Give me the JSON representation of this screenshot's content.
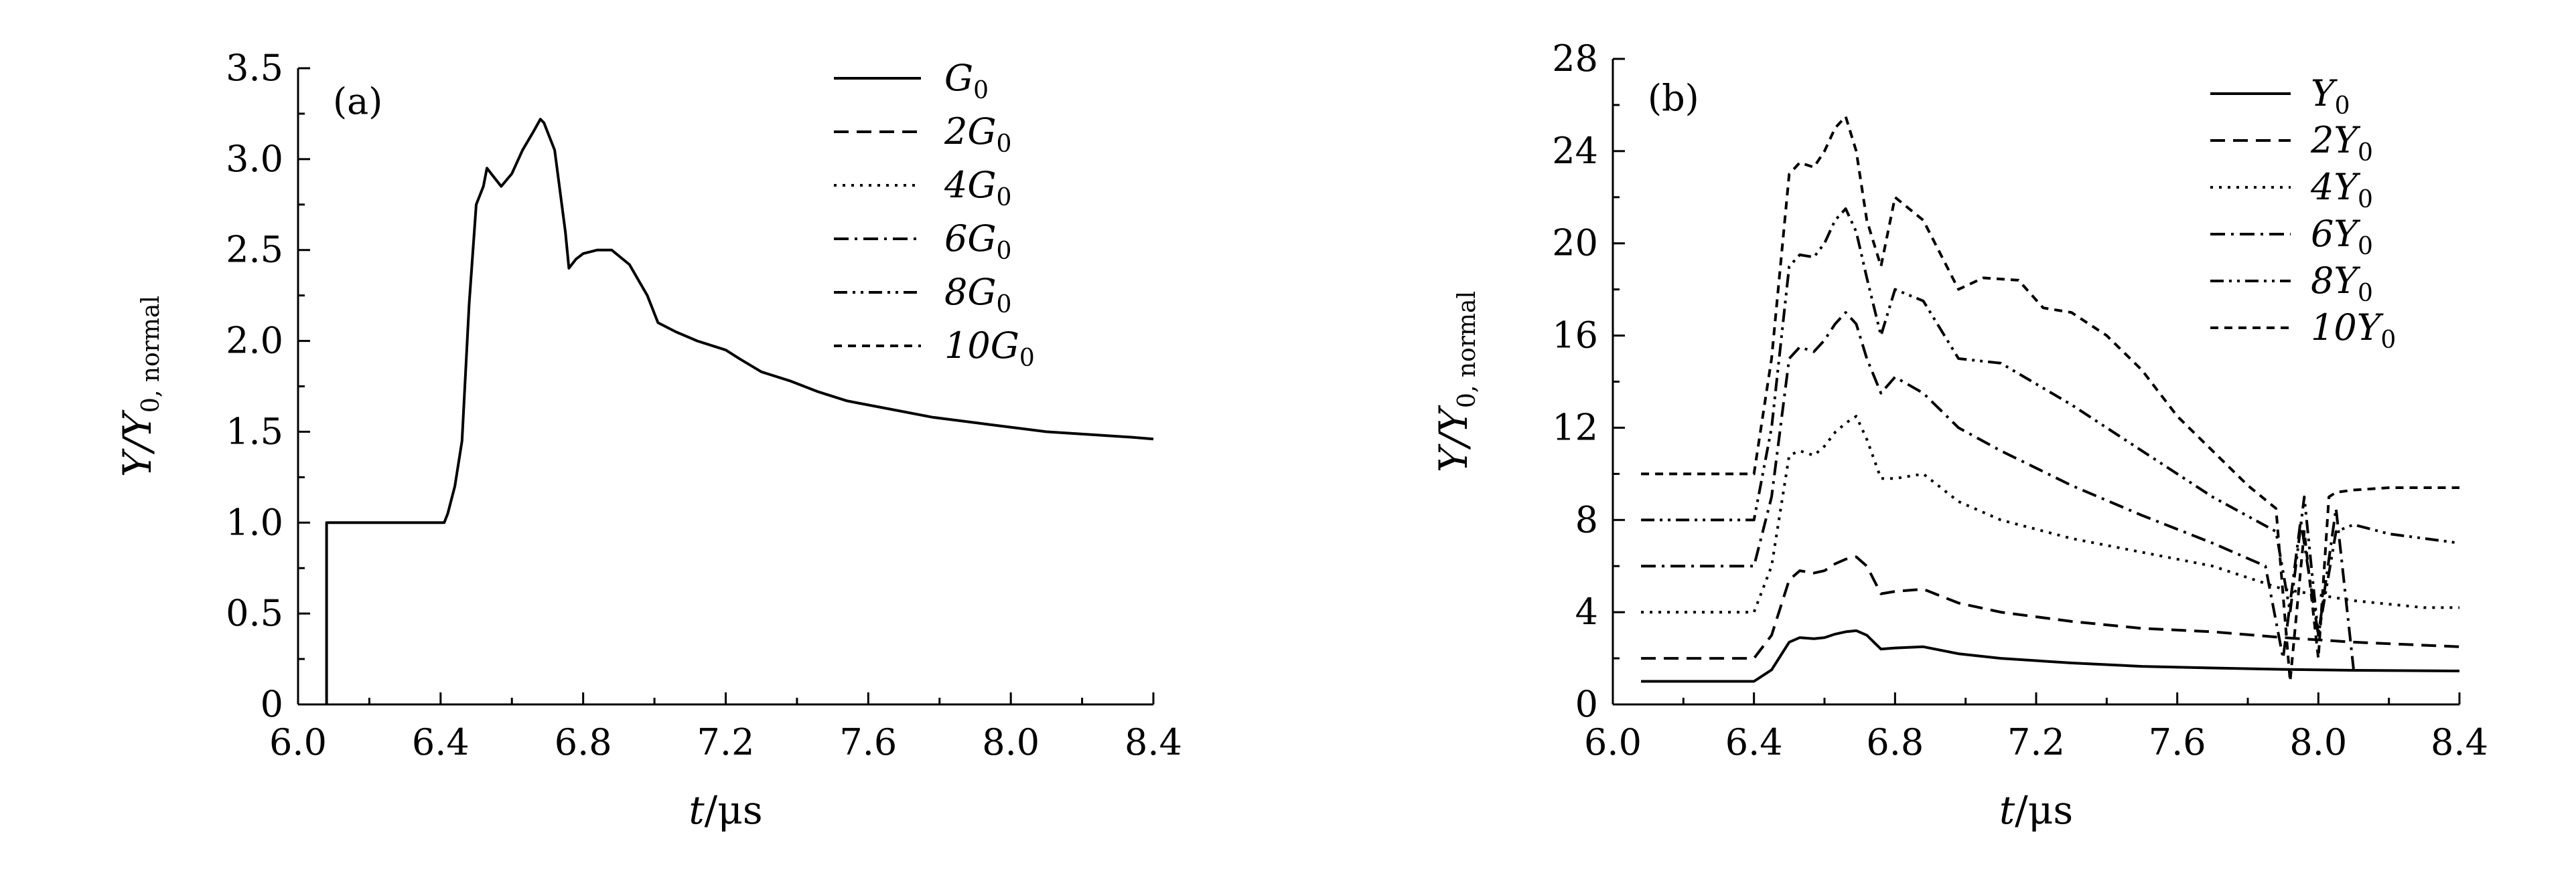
{
  "chart_data": [
    {
      "type": "line",
      "panel_label": "(a)",
      "xlabel_var": "t",
      "xlabel_unit": "/μs",
      "ylabel_var": "Y/Y",
      "ylabel_sub": "0, normal",
      "xlim": [
        6.0,
        8.4
      ],
      "ylim": [
        0,
        3.5
      ],
      "x_ticks": [
        6.0,
        6.4,
        6.8,
        7.2,
        7.6,
        8.0,
        8.4
      ],
      "x_tick_labels": [
        "6.0",
        "6.4",
        "6.8",
        "7.2",
        "7.6",
        "8.0",
        "8.4"
      ],
      "y_ticks": [
        0,
        0.5,
        1.0,
        1.5,
        2.0,
        2.5,
        3.0,
        3.5
      ],
      "y_tick_labels": [
        "0",
        "0.5",
        "1.0",
        "1.5",
        "2.0",
        "2.5",
        "3.0",
        "3.5"
      ],
      "legend_position": "top-right",
      "series": [
        {
          "name": "G",
          "name_sub": "0",
          "dash": "solid",
          "x": [
            6.08,
            6.08,
            6.41,
            6.42,
            6.44,
            6.46,
            6.48,
            6.5,
            6.52,
            6.53,
            6.55,
            6.57,
            6.6,
            6.63,
            6.66,
            6.68,
            6.69,
            6.72,
            6.75,
            6.76,
            6.78,
            6.8,
            6.84,
            6.88,
            6.93,
            6.98,
            7.01,
            7.06,
            7.12,
            7.2,
            7.24,
            7.3,
            7.38,
            7.46,
            7.54,
            7.62,
            7.7,
            7.78,
            7.86,
            7.94,
            8.02,
            8.1,
            8.18,
            8.26,
            8.34,
            8.4
          ],
          "y": [
            0,
            1.0,
            1.0,
            1.05,
            1.2,
            1.45,
            2.2,
            2.75,
            2.85,
            2.95,
            2.9,
            2.85,
            2.92,
            3.05,
            3.15,
            3.22,
            3.2,
            3.05,
            2.6,
            2.4,
            2.45,
            2.48,
            2.5,
            2.5,
            2.42,
            2.25,
            2.1,
            2.05,
            2.0,
            1.95,
            1.9,
            1.83,
            1.78,
            1.72,
            1.67,
            1.64,
            1.61,
            1.58,
            1.56,
            1.54,
            1.52,
            1.5,
            1.49,
            1.48,
            1.47,
            1.46
          ]
        },
        {
          "name": "2G",
          "name_sub": "0",
          "dash": "dashed",
          "x": [],
          "y": []
        },
        {
          "name": "4G",
          "name_sub": "0",
          "dash": "dotted",
          "x": [],
          "y": []
        },
        {
          "name": "6G",
          "name_sub": "0",
          "dash": "dash-dot",
          "x": [],
          "y": []
        },
        {
          "name": "8G",
          "name_sub": "0",
          "dash": "dash-dot-dot",
          "x": [],
          "y": []
        },
        {
          "name": "10G",
          "name_sub": "0",
          "dash": "short-dashed",
          "x": [],
          "y": []
        }
      ]
    },
    {
      "type": "line",
      "panel_label": "(b)",
      "xlabel_var": "t",
      "xlabel_unit": "/μs",
      "ylabel_var": "Y/Y",
      "ylabel_sub": "0, normal",
      "xlim": [
        6.0,
        8.4
      ],
      "ylim": [
        0,
        28
      ],
      "x_ticks": [
        6.0,
        6.4,
        6.8,
        7.2,
        7.6,
        8.0,
        8.4
      ],
      "x_tick_labels": [
        "6.0",
        "6.4",
        "6.8",
        "7.2",
        "7.6",
        "8.0",
        "8.4"
      ],
      "y_ticks": [
        0,
        4,
        8,
        12,
        16,
        20,
        24,
        28
      ],
      "y_tick_labels": [
        "0",
        "4",
        "8",
        "12",
        "16",
        "20",
        "24",
        "28"
      ],
      "legend_position": "top-right",
      "series": [
        {
          "name": "Y",
          "name_sub": "0",
          "dash": "solid",
          "x": [
            6.08,
            6.4,
            6.45,
            6.5,
            6.53,
            6.57,
            6.6,
            6.63,
            6.66,
            6.69,
            6.72,
            6.76,
            6.8,
            6.88,
            6.98,
            7.1,
            7.3,
            7.5,
            7.7,
            7.9,
            8.1,
            8.4
          ],
          "y": [
            1.0,
            1.0,
            1.5,
            2.7,
            2.9,
            2.85,
            2.9,
            3.05,
            3.15,
            3.2,
            3.0,
            2.4,
            2.45,
            2.5,
            2.2,
            2.0,
            1.8,
            1.65,
            1.58,
            1.52,
            1.48,
            1.45
          ]
        },
        {
          "name": "2Y",
          "name_sub": "0",
          "dash": "dashed",
          "x": [
            6.08,
            6.4,
            6.45,
            6.5,
            6.53,
            6.57,
            6.6,
            6.63,
            6.66,
            6.69,
            6.72,
            6.76,
            6.8,
            6.88,
            6.98,
            7.1,
            7.3,
            7.5,
            7.7,
            7.9,
            8.1,
            8.4
          ],
          "y": [
            2.0,
            2.0,
            3.0,
            5.4,
            5.8,
            5.7,
            5.8,
            6.1,
            6.3,
            6.4,
            6.0,
            4.8,
            4.9,
            5.0,
            4.4,
            4.0,
            3.6,
            3.3,
            3.15,
            2.9,
            2.7,
            2.5
          ]
        },
        {
          "name": "4Y",
          "name_sub": "0",
          "dash": "dotted",
          "x": [
            6.08,
            6.4,
            6.45,
            6.5,
            6.53,
            6.57,
            6.6,
            6.63,
            6.66,
            6.69,
            6.72,
            6.76,
            6.8,
            6.88,
            6.98,
            7.1,
            7.3,
            7.5,
            7.7,
            7.9,
            8.1,
            8.3,
            8.4
          ],
          "y": [
            4.0,
            4.0,
            6.0,
            10.8,
            11.0,
            10.8,
            11.2,
            11.8,
            12.2,
            12.5,
            11.5,
            9.8,
            9.8,
            10.0,
            8.8,
            8.0,
            7.2,
            6.6,
            6.0,
            5.0,
            4.5,
            4.2,
            4.2
          ]
        },
        {
          "name": "6Y",
          "name_sub": "0",
          "dash": "dash-dot",
          "x": [
            6.08,
            6.4,
            6.45,
            6.5,
            6.53,
            6.57,
            6.6,
            6.63,
            6.66,
            6.69,
            6.72,
            6.76,
            6.8,
            6.88,
            6.98,
            7.1,
            7.3,
            7.5,
            7.7,
            7.85,
            7.9,
            7.95,
            8.0,
            8.05,
            8.1
          ],
          "y": [
            6.0,
            6.0,
            9.0,
            15.0,
            15.5,
            15.3,
            15.8,
            16.5,
            17.0,
            16.5,
            15.0,
            13.5,
            14.2,
            13.5,
            12.0,
            11.0,
            9.5,
            8.2,
            7.0,
            6.0,
            2.0,
            8.0,
            3.0,
            8.5,
            1.5
          ]
        },
        {
          "name": "8Y",
          "name_sub": "0",
          "dash": "dash-dot-dot",
          "x": [
            6.08,
            6.4,
            6.45,
            6.5,
            6.53,
            6.57,
            6.6,
            6.63,
            6.66,
            6.69,
            6.72,
            6.76,
            6.8,
            6.88,
            6.98,
            7.1,
            7.3,
            7.5,
            7.7,
            7.88,
            7.92,
            7.96,
            8.0,
            8.05,
            8.1,
            8.2,
            8.3,
            8.4
          ],
          "y": [
            8.0,
            8.0,
            12.0,
            19.0,
            19.5,
            19.4,
            20.0,
            21.0,
            21.5,
            20.5,
            18.5,
            16.0,
            18.0,
            17.5,
            15.0,
            14.8,
            13.0,
            11.0,
            9.0,
            7.5,
            4.0,
            9.0,
            3.0,
            7.5,
            7.8,
            7.4,
            7.2,
            7.0
          ]
        },
        {
          "name": "10Y",
          "name_sub": "0",
          "dash": "short-dashed",
          "x": [
            6.08,
            6.4,
            6.45,
            6.5,
            6.53,
            6.57,
            6.6,
            6.63,
            6.66,
            6.69,
            6.72,
            6.76,
            6.8,
            6.88,
            6.98,
            7.05,
            7.15,
            7.22,
            7.3,
            7.4,
            7.5,
            7.6,
            7.7,
            7.8,
            7.88,
            7.92,
            7.96,
            8.0,
            8.03,
            8.05,
            8.1,
            8.2,
            8.3,
            8.4
          ],
          "y": [
            10.0,
            10.0,
            15.0,
            23.0,
            23.5,
            23.3,
            24.0,
            25.0,
            25.5,
            24.0,
            21.0,
            19.0,
            22.0,
            21.0,
            18.0,
            18.5,
            18.4,
            17.2,
            17.0,
            16.0,
            14.5,
            12.5,
            11.0,
            9.5,
            8.5,
            1.0,
            7.5,
            2.0,
            9.0,
            9.2,
            9.3,
            9.4,
            9.4,
            9.4
          ]
        }
      ]
    }
  ]
}
